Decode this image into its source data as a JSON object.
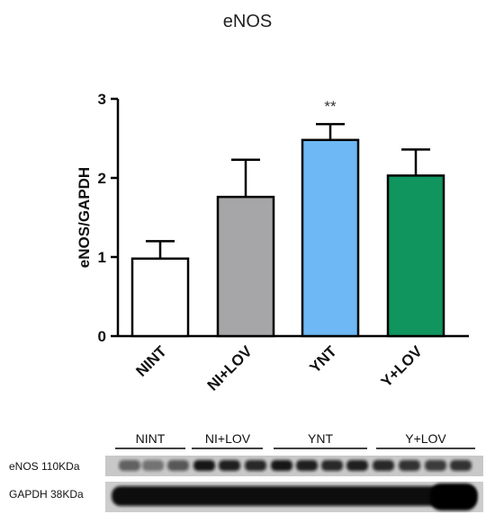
{
  "chart_data": {
    "type": "bar",
    "title": "eNOS",
    "xlabel": "",
    "ylabel": "eNOS/GAPDH",
    "ylim": [
      0,
      3
    ],
    "yticks": [
      "0",
      "1",
      "2",
      "3"
    ],
    "categories": [
      "NINT",
      "NI+LOV",
      "YNT",
      "Y+LOV"
    ],
    "values": [
      0.98,
      1.76,
      2.48,
      2.03
    ],
    "errors": [
      0.22,
      0.47,
      0.2,
      0.33
    ],
    "annotations": [
      {
        "category": "YNT",
        "text": "**"
      }
    ],
    "colors": [
      "#ffffff",
      "#a6a6a8",
      "#6db8f5",
      "#10955f"
    ],
    "grid": false,
    "legend": "none"
  },
  "blot": {
    "lane_labels": [
      "NINT",
      "NI+LOV",
      "YNT",
      "Y+LOV"
    ],
    "row_labels": [
      "eNOS 110KDa",
      "GAPDH 38KDa"
    ]
  }
}
